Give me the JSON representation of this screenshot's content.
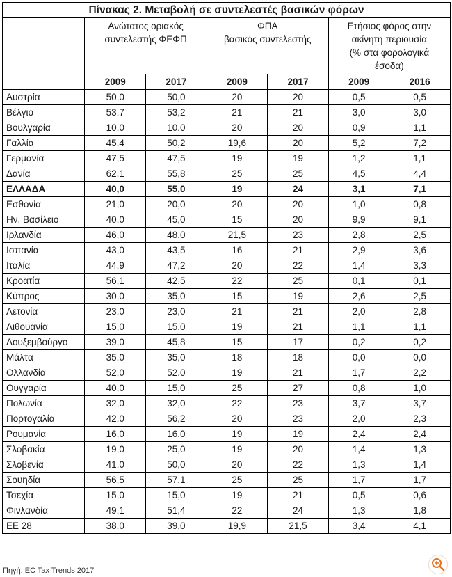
{
  "title": "Πίνακας 2. Μεταβολή σε συντελεστές βασικών φόρων",
  "groups": [
    {
      "lines": [
        "Ανώτατος οριακός",
        "συντελεστής ΦΕΦΠ"
      ]
    },
    {
      "lines": [
        "ΦΠΑ",
        "βασικός συντελεστής"
      ]
    },
    {
      "lines": [
        "Ετήσιος φόρος στην",
        "ακίνητη περιουσία",
        "(% στα φορολογικά",
        "έσοδα)"
      ]
    }
  ],
  "years": [
    "2009",
    "2017",
    "2009",
    "2017",
    "2009",
    "2016"
  ],
  "rows": [
    {
      "country": "Αυστρία",
      "v": [
        "50,0",
        "50,0",
        "20",
        "20",
        "0,5",
        "0,5"
      ]
    },
    {
      "country": "Βέλγιο",
      "v": [
        "53,7",
        "53,2",
        "21",
        "21",
        "3,0",
        "3,0"
      ]
    },
    {
      "country": "Βουλγαρία",
      "v": [
        "10,0",
        "10,0",
        "20",
        "20",
        "0,9",
        "1,1"
      ]
    },
    {
      "country": "Γαλλία",
      "v": [
        "45,4",
        "50,2",
        "19,6",
        "20",
        "5,2",
        "7,2"
      ]
    },
    {
      "country": "Γερμανία",
      "v": [
        "47,5",
        "47,5",
        "19",
        "19",
        "1,2",
        "1,1"
      ]
    },
    {
      "country": "Δανία",
      "v": [
        "62,1",
        "55,8",
        "25",
        "25",
        "4,5",
        "4,4"
      ]
    },
    {
      "country": "ΕΛΛΑΔΑ",
      "v": [
        "40,0",
        "55,0",
        "19",
        "24",
        "3,1",
        "7,1"
      ],
      "bold": true
    },
    {
      "country": "Εσθονία",
      "v": [
        "21,0",
        "20,0",
        "20",
        "20",
        "1,0",
        "0,8"
      ]
    },
    {
      "country": "Ην. Βασίλειο",
      "v": [
        "40,0",
        "45,0",
        "15",
        "20",
        "9,9",
        "9,1"
      ]
    },
    {
      "country": "Ιρλανδία",
      "v": [
        "46,0",
        "48,0",
        "21,5",
        "23",
        "2,8",
        "2,5"
      ]
    },
    {
      "country": "Ισπανία",
      "v": [
        "43,0",
        "43,5",
        "16",
        "21",
        "2,9",
        "3,6"
      ]
    },
    {
      "country": "Ιταλία",
      "v": [
        "44,9",
        "47,2",
        "20",
        "22",
        "1,4",
        "3,3"
      ]
    },
    {
      "country": "Κροατία",
      "v": [
        "56,1",
        "42,5",
        "22",
        "25",
        "0,1",
        "0,1"
      ]
    },
    {
      "country": "Κύπρος",
      "v": [
        "30,0",
        "35,0",
        "15",
        "19",
        "2,6",
        "2,5"
      ]
    },
    {
      "country": "Λετονία",
      "v": [
        "23,0",
        "23,0",
        "21",
        "21",
        "2,0",
        "2,8"
      ]
    },
    {
      "country": "Λιθουανία",
      "v": [
        "15,0",
        "15,0",
        "19",
        "21",
        "1,1",
        "1,1"
      ]
    },
    {
      "country": "Λουξεμβούργο",
      "v": [
        "39,0",
        "45,8",
        "15",
        "17",
        "0,2",
        "0,2"
      ]
    },
    {
      "country": "Μάλτα",
      "v": [
        "35,0",
        "35,0",
        "18",
        "18",
        "0,0",
        "0,0"
      ]
    },
    {
      "country": "Ολλανδία",
      "v": [
        "52,0",
        "52,0",
        "19",
        "21",
        "1,7",
        "2,2"
      ]
    },
    {
      "country": "Ουγγαρία",
      "v": [
        "40,0",
        "15,0",
        "25",
        "27",
        "0,8",
        "1,0"
      ]
    },
    {
      "country": "Πολωνία",
      "v": [
        "32,0",
        "32,0",
        "22",
        "23",
        "3,7",
        "3,7"
      ]
    },
    {
      "country": "Πορτογαλία",
      "v": [
        "42,0",
        "56,2",
        "20",
        "23",
        "2,0",
        "2,3"
      ]
    },
    {
      "country": "Ρουμανία",
      "v": [
        "16,0",
        "16,0",
        "19",
        "19",
        "2,4",
        "2,4"
      ]
    },
    {
      "country": "Σλοβακία",
      "v": [
        "19,0",
        "25,0",
        "19",
        "20",
        "1,4",
        "1,3"
      ]
    },
    {
      "country": "Σλοβενία",
      "v": [
        "41,0",
        "50,0",
        "20",
        "22",
        "1,3",
        "1,4"
      ]
    },
    {
      "country": "Σουηδία",
      "v": [
        "56,5",
        "57,1",
        "25",
        "25",
        "1,7",
        "1,7"
      ]
    },
    {
      "country": "Τσεχία",
      "v": [
        "15,0",
        "15,0",
        "19",
        "21",
        "0,5",
        "0,6"
      ]
    },
    {
      "country": "Φινλανδία",
      "v": [
        "49,1",
        "51,4",
        "22",
        "24",
        "1,3",
        "1,8"
      ]
    },
    {
      "country": "ΕΕ 28",
      "v": [
        "38,0",
        "39,0",
        "19,9",
        "21,5",
        "3,4",
        "4,1"
      ]
    }
  ],
  "source": "Πηγή: EC Tax Trends 2017",
  "zoom_icon": "zoom-in-icon",
  "accent_color": "#e8731a"
}
